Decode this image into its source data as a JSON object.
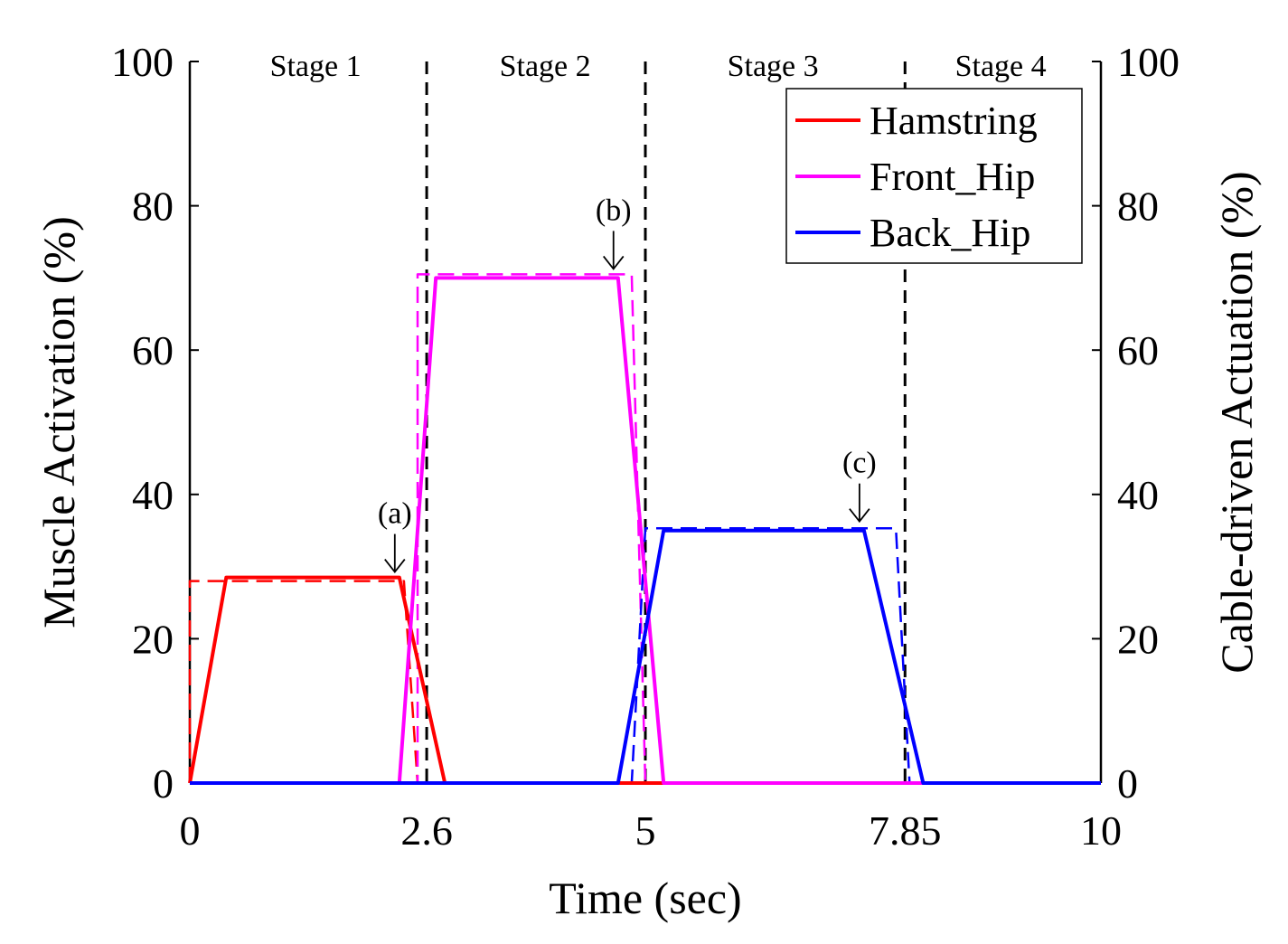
{
  "chart_data": {
    "type": "line",
    "xlabel": "Time (sec)",
    "ylabel_left": "Muscle Activation (%)",
    "ylabel_right": "Cable-driven Actuation (%)",
    "xlim": [
      0,
      10
    ],
    "ylim": [
      0,
      100
    ],
    "xticks": [
      0,
      2.6,
      5,
      7.85,
      10
    ],
    "xtick_labels": [
      "0",
      "2.6",
      "5",
      "7.85",
      "10"
    ],
    "yticks": [
      0,
      20,
      40,
      60,
      80,
      100
    ],
    "ytick_labels": [
      "0",
      "20",
      "40",
      "60",
      "80",
      "100"
    ],
    "stage_boundaries": [
      2.6,
      5,
      7.85
    ],
    "stages": [
      {
        "label": "Stage 1",
        "x": 1.38
      },
      {
        "label": "Stage 2",
        "x": 3.9
      },
      {
        "label": "Stage 3",
        "x": 6.4
      },
      {
        "label": "Stage 4",
        "x": 8.9
      }
    ],
    "series": [
      {
        "name": "Hamstring",
        "color": "#ff0000",
        "style": "solid",
        "x": [
          0,
          0,
          0.4,
          2.3,
          2.8,
          10
        ],
        "y": [
          0,
          0,
          28.5,
          28.5,
          0,
          0
        ]
      },
      {
        "name": "Front_Hip",
        "color": "#ff00ff",
        "style": "solid",
        "x": [
          0,
          2.3,
          2.7,
          4.7,
          5.2,
          10
        ],
        "y": [
          0,
          0,
          70,
          70,
          0,
          0
        ]
      },
      {
        "name": "Back_Hip",
        "color": "#0000ff",
        "style": "solid",
        "x": [
          0,
          4.7,
          5.2,
          7.4,
          8.05,
          10
        ],
        "y": [
          0,
          0,
          35,
          35,
          0,
          0
        ]
      },
      {
        "name": "Hamstring (cable)",
        "color": "#ff0000",
        "style": "dashed",
        "x": [
          0,
          0,
          2.35,
          2.5,
          10
        ],
        "y": [
          0,
          28,
          28,
          0,
          0
        ]
      },
      {
        "name": "Front_Hip (cable)",
        "color": "#ff00ff",
        "style": "dashed",
        "x": [
          0,
          2.5,
          2.5,
          4.85,
          5.0,
          10
        ],
        "y": [
          0,
          0,
          70.5,
          70.5,
          0,
          0
        ]
      },
      {
        "name": "Back_Hip (cable)",
        "color": "#0000ff",
        "style": "dashed",
        "x": [
          0,
          4.85,
          5.0,
          7.75,
          7.9,
          10
        ],
        "y": [
          0,
          0,
          35.3,
          35.3,
          0,
          0
        ]
      }
    ],
    "legend": {
      "position": "top-right",
      "entries": [
        {
          "label": "Hamstring",
          "color": "#ff0000"
        },
        {
          "label": "Front_Hip",
          "color": "#ff00ff"
        },
        {
          "label": "Back_Hip",
          "color": "#0000ff"
        }
      ]
    },
    "annotations": [
      {
        "label": "(a)",
        "x": 2.25,
        "y": 28.5
      },
      {
        "label": "(b)",
        "x": 4.65,
        "y": 70.5
      },
      {
        "label": "(c)",
        "x": 7.35,
        "y": 35.5
      }
    ]
  }
}
